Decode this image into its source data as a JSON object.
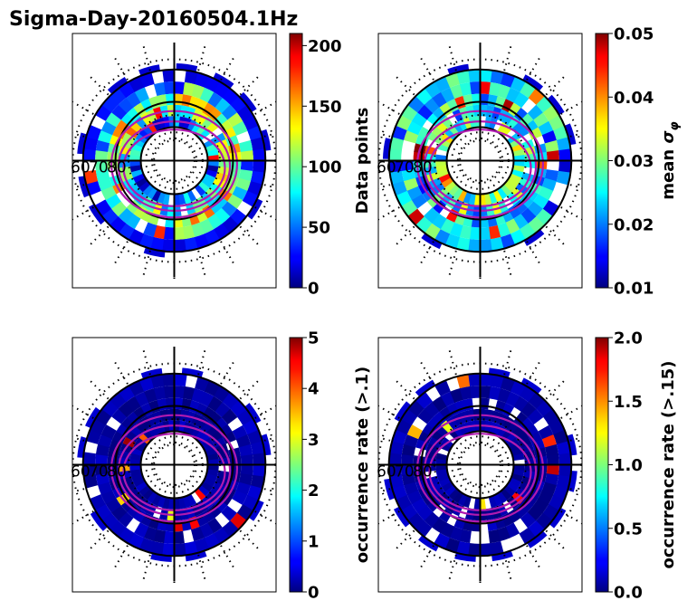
{
  "title": "Sigma-Day-20160504.1Hz",
  "lat_ring_labels": [
    "60",
    "70",
    "80"
  ],
  "chart_data": [
    {
      "type": "heatmap",
      "projection": "polar",
      "colormap": "jet",
      "colorbar": {
        "label": "Data points",
        "range": [
          0,
          210
        ],
        "ticks": [
          "0",
          "50",
          "100",
          "150",
          "200"
        ],
        "tick_values": [
          0,
          50,
          100,
          150,
          200
        ]
      },
      "bands": [
        {
          "r_inner": 0.78,
          "r_outer": 0.9,
          "level": 0.12
        },
        {
          "r_inner": 0.66,
          "r_outer": 0.78,
          "level": 0.35
        },
        {
          "r_inner": 0.55,
          "r_outer": 0.66,
          "level": 0.55
        },
        {
          "r_inner": 0.44,
          "r_outer": 0.55,
          "level": 0.45
        },
        {
          "r_inner": 0.33,
          "r_outer": 0.44,
          "level": 0.25
        }
      ]
    },
    {
      "type": "heatmap",
      "projection": "polar",
      "colormap": "jet",
      "colorbar": {
        "label": "mean σ_φ",
        "range": [
          0.01,
          0.05
        ],
        "ticks": [
          "0.01",
          "0.02",
          "0.03",
          "0.04",
          "0.05"
        ],
        "tick_values": [
          0.01,
          0.02,
          0.03,
          0.04,
          0.05
        ]
      },
      "bands": [
        {
          "r_inner": 0.78,
          "r_outer": 0.9,
          "level": 0.3
        },
        {
          "r_inner": 0.66,
          "r_outer": 0.78,
          "level": 0.32
        },
        {
          "r_inner": 0.55,
          "r_outer": 0.66,
          "level": 0.34
        },
        {
          "r_inner": 0.44,
          "r_outer": 0.55,
          "level": 0.4
        },
        {
          "r_inner": 0.33,
          "r_outer": 0.44,
          "level": 0.45
        }
      ]
    },
    {
      "type": "heatmap",
      "projection": "polar",
      "colormap": "jet",
      "colorbar": {
        "label": "occurrence rate (>.1)",
        "range": [
          0,
          5
        ],
        "ticks": [
          "0",
          "1",
          "2",
          "3",
          "4",
          "5"
        ],
        "tick_values": [
          0,
          1,
          2,
          3,
          4,
          5
        ]
      },
      "bands": [
        {
          "r_inner": 0.78,
          "r_outer": 0.9,
          "level": 0.05
        },
        {
          "r_inner": 0.66,
          "r_outer": 0.78,
          "level": 0.04
        },
        {
          "r_inner": 0.55,
          "r_outer": 0.66,
          "level": 0.03
        },
        {
          "r_inner": 0.44,
          "r_outer": 0.55,
          "level": 0.03
        },
        {
          "r_inner": 0.33,
          "r_outer": 0.44,
          "level": 0.04
        }
      ]
    },
    {
      "type": "heatmap",
      "projection": "polar",
      "colormap": "jet",
      "colorbar": {
        "label": "occurrence rate (>.15)",
        "range": [
          0,
          2
        ],
        "ticks": [
          "0.0",
          "0.5",
          "1.0",
          "1.5",
          "2.0"
        ],
        "tick_values": [
          0,
          0.5,
          1.0,
          1.5,
          2.0
        ]
      },
      "bands": [
        {
          "r_inner": 0.78,
          "r_outer": 0.9,
          "level": 0.04
        },
        {
          "r_inner": 0.66,
          "r_outer": 0.78,
          "level": 0.03
        },
        {
          "r_inner": 0.55,
          "r_outer": 0.66,
          "level": 0.03
        },
        {
          "r_inner": 0.44,
          "r_outer": 0.55,
          "level": 0.02
        },
        {
          "r_inner": 0.33,
          "r_outer": 0.44,
          "level": 0.03
        }
      ]
    }
  ]
}
